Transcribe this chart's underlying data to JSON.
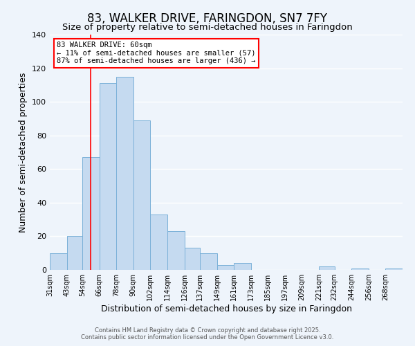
{
  "title": "83, WALKER DRIVE, FARINGDON, SN7 7FY",
  "subtitle": "Size of property relative to semi-detached houses in Faringdon",
  "xlabel": "Distribution of semi-detached houses by size in Faringdon",
  "ylabel": "Number of semi-detached properties",
  "bar_color": "#c5daf0",
  "bar_edge_color": "#7ab0d8",
  "bin_edges": [
    31,
    43,
    54,
    66,
    78,
    90,
    102,
    114,
    126,
    137,
    149,
    161,
    173,
    185,
    197,
    209,
    221,
    232,
    244,
    256,
    268,
    280
  ],
  "bar_heights": [
    10,
    20,
    67,
    111,
    115,
    89,
    33,
    23,
    13,
    10,
    3,
    4,
    0,
    0,
    0,
    0,
    2,
    0,
    1,
    0,
    1
  ],
  "tick_labels": [
    "31sqm",
    "43sqm",
    "54sqm",
    "66sqm",
    "78sqm",
    "90sqm",
    "102sqm",
    "114sqm",
    "126sqm",
    "137sqm",
    "149sqm",
    "161sqm",
    "173sqm",
    "185sqm",
    "197sqm",
    "209sqm",
    "221sqm",
    "232sqm",
    "244sqm",
    "256sqm",
    "268sqm"
  ],
  "vline_x": 60,
  "vline_color": "red",
  "ylim": [
    0,
    140
  ],
  "yticks": [
    0,
    20,
    40,
    60,
    80,
    100,
    120,
    140
  ],
  "annotation_title": "83 WALKER DRIVE: 60sqm",
  "annotation_line1": "← 11% of semi-detached houses are smaller (57)",
  "annotation_line2": "87% of semi-detached houses are larger (436) →",
  "annotation_box_color": "white",
  "annotation_edge_color": "red",
  "footer1": "Contains HM Land Registry data © Crown copyright and database right 2025.",
  "footer2": "Contains public sector information licensed under the Open Government Licence v3.0.",
  "background_color": "#eef4fb",
  "grid_color": "white",
  "title_fontsize": 12,
  "subtitle_fontsize": 9.5,
  "tick_fontsize": 7,
  "ylabel_fontsize": 9,
  "xlabel_fontsize": 9,
  "annotation_fontsize": 7.5
}
